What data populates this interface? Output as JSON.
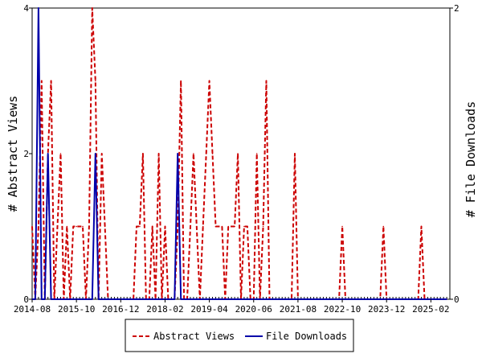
{
  "chart_data": {
    "type": "line",
    "x_tick_labels": [
      "2014-08",
      "2015-10",
      "2016-12",
      "2018-02",
      "2019-04",
      "2020-06",
      "2021-08",
      "2022-10",
      "2023-12",
      "2025-02"
    ],
    "x_range": [
      "2014-08",
      "2025-08"
    ],
    "ylabel_left": "# Abstract Views",
    "ylabel_right": "# File Downloads",
    "ylim_left": [
      0,
      4
    ],
    "ylim_right": [
      0,
      2
    ],
    "y_ticks_left": [
      "0",
      "2",
      "4"
    ],
    "y_ticks_right": [
      "0",
      "2"
    ],
    "legend_position": "bottom-center",
    "series": [
      {
        "name": "Abstract Views",
        "axis": "left",
        "color": "#cc0000",
        "style": "dashed",
        "points": [
          [
            "2014-08",
            1
          ],
          [
            "2014-09",
            0
          ],
          [
            "2014-10",
            1
          ],
          [
            "2014-11",
            3
          ],
          [
            "2014-12",
            0
          ],
          [
            "2015-01",
            2
          ],
          [
            "2015-02",
            3
          ],
          [
            "2015-03",
            0
          ],
          [
            "2015-04",
            1
          ],
          [
            "2015-05",
            2
          ],
          [
            "2015-06",
            0
          ],
          [
            "2015-07",
            1
          ],
          [
            "2015-08",
            0
          ],
          [
            "2015-09",
            1
          ],
          [
            "2015-10",
            1
          ],
          [
            "2015-11",
            1
          ],
          [
            "2015-12",
            1
          ],
          [
            "2016-01",
            0
          ],
          [
            "2016-02",
            1
          ],
          [
            "2016-03",
            4
          ],
          [
            "2016-04",
            3
          ],
          [
            "2016-05",
            0
          ],
          [
            "2016-06",
            2
          ],
          [
            "2016-07",
            1
          ],
          [
            "2016-08",
            0
          ],
          [
            "2016-09",
            0
          ],
          [
            "2016-10",
            0
          ],
          [
            "2016-11",
            0
          ],
          [
            "2016-12",
            0
          ],
          [
            "2017-01",
            0
          ],
          [
            "2017-02",
            0
          ],
          [
            "2017-03",
            0
          ],
          [
            "2017-04",
            0
          ],
          [
            "2017-05",
            1
          ],
          [
            "2017-06",
            1
          ],
          [
            "2017-07",
            2
          ],
          [
            "2017-08",
            0
          ],
          [
            "2017-09",
            0
          ],
          [
            "2017-10",
            1
          ],
          [
            "2017-11",
            0
          ],
          [
            "2017-12",
            2
          ],
          [
            "2018-01",
            0
          ],
          [
            "2018-02",
            1
          ],
          [
            "2018-03",
            0
          ],
          [
            "2018-04",
            0
          ],
          [
            "2018-05",
            0
          ],
          [
            "2018-06",
            1
          ],
          [
            "2018-07",
            3
          ],
          [
            "2018-08",
            0
          ],
          [
            "2018-09",
            0
          ],
          [
            "2018-10",
            1
          ],
          [
            "2018-11",
            2
          ],
          [
            "2018-12",
            1
          ],
          [
            "2019-01",
            0
          ],
          [
            "2019-02",
            1
          ],
          [
            "2019-03",
            2
          ],
          [
            "2019-04",
            3
          ],
          [
            "2019-05",
            2
          ],
          [
            "2019-06",
            1
          ],
          [
            "2019-07",
            1
          ],
          [
            "2019-08",
            1
          ],
          [
            "2019-09",
            0
          ],
          [
            "2019-10",
            1
          ],
          [
            "2019-11",
            1
          ],
          [
            "2019-12",
            1
          ],
          [
            "2020-01",
            2
          ],
          [
            "2020-02",
            0
          ],
          [
            "2020-03",
            1
          ],
          [
            "2020-04",
            1
          ],
          [
            "2020-05",
            0
          ],
          [
            "2020-06",
            0
          ],
          [
            "2020-07",
            2
          ],
          [
            "2020-08",
            0
          ],
          [
            "2020-09",
            1
          ],
          [
            "2020-10",
            3
          ],
          [
            "2020-11",
            0
          ],
          [
            "2020-12",
            0
          ],
          [
            "2021-01",
            0
          ],
          [
            "2021-02",
            0
          ],
          [
            "2021-03",
            0
          ],
          [
            "2021-04",
            0
          ],
          [
            "2021-05",
            0
          ],
          [
            "2021-06",
            0
          ],
          [
            "2021-07",
            2
          ],
          [
            "2021-08",
            0
          ],
          [
            "2021-09",
            0
          ],
          [
            "2021-10",
            0
          ],
          [
            "2021-11",
            0
          ],
          [
            "2021-12",
            0
          ],
          [
            "2022-01",
            0
          ],
          [
            "2022-02",
            0
          ],
          [
            "2022-03",
            0
          ],
          [
            "2022-04",
            0
          ],
          [
            "2022-05",
            0
          ],
          [
            "2022-06",
            0
          ],
          [
            "2022-07",
            0
          ],
          [
            "2022-08",
            0
          ],
          [
            "2022-09",
            0
          ],
          [
            "2022-10",
            1
          ],
          [
            "2022-11",
            0
          ],
          [
            "2022-12",
            0
          ],
          [
            "2023-01",
            0
          ],
          [
            "2023-02",
            0
          ],
          [
            "2023-03",
            0
          ],
          [
            "2023-04",
            0
          ],
          [
            "2023-05",
            0
          ],
          [
            "2023-06",
            0
          ],
          [
            "2023-07",
            0
          ],
          [
            "2023-08",
            0
          ],
          [
            "2023-09",
            0
          ],
          [
            "2023-10",
            0
          ],
          [
            "2023-11",
            1
          ],
          [
            "2023-12",
            0
          ],
          [
            "2024-01",
            0
          ],
          [
            "2024-02",
            0
          ],
          [
            "2024-03",
            0
          ],
          [
            "2024-04",
            0
          ],
          [
            "2024-05",
            0
          ],
          [
            "2024-06",
            0
          ],
          [
            "2024-07",
            0
          ],
          [
            "2024-08",
            0
          ],
          [
            "2024-09",
            0
          ],
          [
            "2024-10",
            0
          ],
          [
            "2024-11",
            1
          ],
          [
            "2024-12",
            0
          ],
          [
            "2025-01",
            0
          ],
          [
            "2025-02",
            0
          ],
          [
            "2025-03",
            0
          ],
          [
            "2025-04",
            0
          ],
          [
            "2025-05",
            0
          ],
          [
            "2025-06",
            0
          ],
          [
            "2025-07",
            0
          ]
        ]
      },
      {
        "name": "File Downloads",
        "axis": "right",
        "color": "#0000aa",
        "style": "solid",
        "points": [
          [
            "2014-08",
            0
          ],
          [
            "2014-09",
            0
          ],
          [
            "2014-10",
            2
          ],
          [
            "2014-11",
            0
          ],
          [
            "2014-12",
            0
          ],
          [
            "2015-01",
            1
          ],
          [
            "2015-02",
            0
          ],
          [
            "2015-03",
            0
          ],
          [
            "2015-04",
            0
          ],
          [
            "2015-05",
            0
          ],
          [
            "2015-06",
            0
          ],
          [
            "2015-07",
            0
          ],
          [
            "2015-08",
            0
          ],
          [
            "2015-09",
            0
          ],
          [
            "2015-10",
            0
          ],
          [
            "2015-11",
            0
          ],
          [
            "2015-12",
            0
          ],
          [
            "2016-01",
            0
          ],
          [
            "2016-02",
            0
          ],
          [
            "2016-03",
            0
          ],
          [
            "2016-04",
            1
          ],
          [
            "2016-05",
            0
          ],
          [
            "2016-06",
            0
          ],
          [
            "2016-07",
            0
          ],
          [
            "2016-08",
            0
          ],
          [
            "2016-09",
            0
          ],
          [
            "2016-10",
            0
          ],
          [
            "2016-11",
            0
          ],
          [
            "2016-12",
            0
          ],
          [
            "2017-01",
            0
          ],
          [
            "2017-02",
            0
          ],
          [
            "2017-03",
            0
          ],
          [
            "2017-04",
            0
          ],
          [
            "2017-05",
            0
          ],
          [
            "2017-06",
            0
          ],
          [
            "2017-07",
            0
          ],
          [
            "2017-08",
            0
          ],
          [
            "2017-09",
            0
          ],
          [
            "2017-10",
            0
          ],
          [
            "2017-11",
            0
          ],
          [
            "2017-12",
            0
          ],
          [
            "2018-01",
            0
          ],
          [
            "2018-02",
            0
          ],
          [
            "2018-03",
            0
          ],
          [
            "2018-04",
            0
          ],
          [
            "2018-05",
            0
          ],
          [
            "2018-06",
            1
          ],
          [
            "2018-07",
            0
          ],
          [
            "2018-08",
            0
          ],
          [
            "2018-09",
            0
          ],
          [
            "2018-10",
            0
          ],
          [
            "2018-11",
            0
          ],
          [
            "2018-12",
            0
          ],
          [
            "2019-01",
            0
          ],
          [
            "2019-02",
            0
          ],
          [
            "2019-03",
            0
          ],
          [
            "2019-04",
            0
          ],
          [
            "2019-05",
            0
          ],
          [
            "2019-06",
            0
          ],
          [
            "2019-07",
            0
          ],
          [
            "2019-08",
            0
          ],
          [
            "2019-09",
            0
          ],
          [
            "2019-10",
            0
          ],
          [
            "2019-11",
            0
          ],
          [
            "2019-12",
            0
          ],
          [
            "2020-01",
            0
          ],
          [
            "2020-02",
            0
          ],
          [
            "2020-03",
            0
          ],
          [
            "2020-04",
            0
          ],
          [
            "2020-05",
            0
          ],
          [
            "2020-06",
            0
          ],
          [
            "2020-07",
            0
          ],
          [
            "2020-08",
            0
          ],
          [
            "2020-09",
            0
          ],
          [
            "2020-10",
            0
          ],
          [
            "2020-11",
            0
          ],
          [
            "2020-12",
            0
          ],
          [
            "2021-01",
            0
          ],
          [
            "2021-02",
            0
          ],
          [
            "2021-03",
            0
          ],
          [
            "2021-04",
            0
          ],
          [
            "2021-05",
            0
          ],
          [
            "2021-06",
            0
          ],
          [
            "2021-07",
            0
          ],
          [
            "2021-08",
            0
          ],
          [
            "2021-09",
            0
          ],
          [
            "2021-10",
            0
          ],
          [
            "2021-11",
            0
          ],
          [
            "2021-12",
            0
          ],
          [
            "2022-01",
            0
          ],
          [
            "2022-02",
            0
          ],
          [
            "2022-03",
            0
          ],
          [
            "2022-04",
            0
          ],
          [
            "2022-05",
            0
          ],
          [
            "2022-06",
            0
          ],
          [
            "2022-07",
            0
          ],
          [
            "2022-08",
            0
          ],
          [
            "2022-09",
            0
          ],
          [
            "2022-10",
            0
          ],
          [
            "2022-11",
            0
          ],
          [
            "2022-12",
            0
          ],
          [
            "2023-01",
            0
          ],
          [
            "2023-02",
            0
          ],
          [
            "2023-03",
            0
          ],
          [
            "2023-04",
            0
          ],
          [
            "2023-05",
            0
          ],
          [
            "2023-06",
            0
          ],
          [
            "2023-07",
            0
          ],
          [
            "2023-08",
            0
          ],
          [
            "2023-09",
            0
          ],
          [
            "2023-10",
            0
          ],
          [
            "2023-11",
            0
          ],
          [
            "2023-12",
            0
          ],
          [
            "2024-01",
            0
          ],
          [
            "2024-02",
            0
          ],
          [
            "2024-03",
            0
          ],
          [
            "2024-04",
            0
          ],
          [
            "2024-05",
            0
          ],
          [
            "2024-06",
            0
          ],
          [
            "2024-07",
            0
          ],
          [
            "2024-08",
            0
          ],
          [
            "2024-09",
            0
          ],
          [
            "2024-10",
            0
          ],
          [
            "2024-11",
            0
          ],
          [
            "2024-12",
            0
          ],
          [
            "2025-01",
            0
          ],
          [
            "2025-02",
            0
          ],
          [
            "2025-03",
            0
          ],
          [
            "2025-04",
            0
          ],
          [
            "2025-05",
            0
          ],
          [
            "2025-06",
            0
          ],
          [
            "2025-07",
            0
          ]
        ]
      }
    ]
  }
}
